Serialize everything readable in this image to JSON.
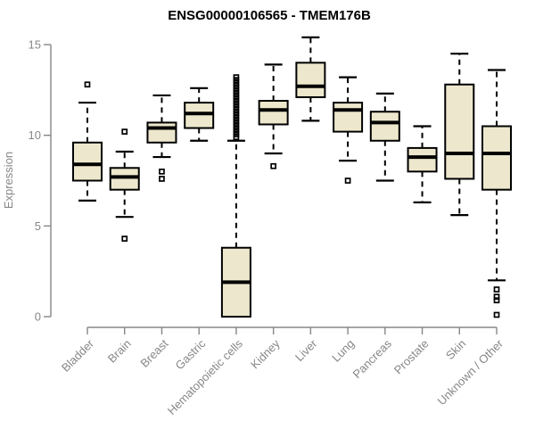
{
  "chart_data": {
    "type": "box",
    "title": "ENSG00000106565 - TMEM176B",
    "ylabel": "Expression",
    "xlabel": "",
    "ylim": [
      0,
      15
    ],
    "yticks": [
      0,
      5,
      10,
      15
    ],
    "grid": false,
    "legend": "none",
    "colors": {
      "box_fill": "#EDE8CD",
      "box_stroke": "#000000",
      "median": "#000000",
      "whisker": "#000000",
      "outlier": "#000000",
      "axis": "#878787",
      "tick_text": "#878787",
      "title_text": "#000000",
      "background": "#FFFFFF"
    },
    "categories": [
      "Bladder",
      "Brain",
      "Breast",
      "Gastric",
      "Hematopoietic cells",
      "Kidney",
      "Liver",
      "Lung",
      "Pancreas",
      "Prostate",
      "Skin",
      "Unknown / Other"
    ],
    "series": [
      {
        "category": "Bladder",
        "whisker_low": 6.4,
        "q1": 7.5,
        "median": 8.4,
        "q3": 9.6,
        "whisker_high": 11.8,
        "outliers": [
          12.8
        ]
      },
      {
        "category": "Brain",
        "whisker_low": 5.5,
        "q1": 7.0,
        "median": 7.7,
        "q3": 8.2,
        "whisker_high": 9.1,
        "outliers": [
          10.2,
          4.3
        ]
      },
      {
        "category": "Breast",
        "whisker_low": 8.8,
        "q1": 9.6,
        "median": 10.4,
        "q3": 10.7,
        "whisker_high": 12.2,
        "outliers": [
          8.0,
          7.6
        ]
      },
      {
        "category": "Gastric",
        "whisker_low": 9.7,
        "q1": 10.4,
        "median": 11.2,
        "q3": 11.8,
        "whisker_high": 12.6,
        "outliers": []
      },
      {
        "category": "Hematopoietic cells",
        "whisker_low": 0.0,
        "q1": 0.0,
        "median": 1.9,
        "q3": 3.8,
        "whisker_high": 9.7,
        "outliers": [
          9.9,
          10.05,
          10.2,
          10.35,
          10.5,
          10.65,
          10.8,
          10.95,
          11.1,
          11.25,
          11.4,
          11.55,
          11.7,
          11.85,
          12.0,
          12.15,
          12.3,
          12.45,
          12.6,
          12.75,
          12.9,
          13.05,
          13.2
        ]
      },
      {
        "category": "Kidney",
        "whisker_low": 9.0,
        "q1": 10.6,
        "median": 11.4,
        "q3": 11.9,
        "whisker_high": 13.9,
        "outliers": [
          8.3
        ]
      },
      {
        "category": "Liver",
        "whisker_low": 10.8,
        "q1": 12.1,
        "median": 12.7,
        "q3": 14.0,
        "whisker_high": 15.4,
        "outliers": []
      },
      {
        "category": "Lung",
        "whisker_low": 8.6,
        "q1": 10.2,
        "median": 11.4,
        "q3": 11.8,
        "whisker_high": 13.2,
        "outliers": [
          7.5
        ]
      },
      {
        "category": "Pancreas",
        "whisker_low": 7.5,
        "q1": 9.7,
        "median": 10.7,
        "q3": 11.3,
        "whisker_high": 12.3,
        "outliers": []
      },
      {
        "category": "Prostate",
        "whisker_low": 6.3,
        "q1": 8.0,
        "median": 8.8,
        "q3": 9.3,
        "whisker_high": 10.5,
        "outliers": []
      },
      {
        "category": "Skin",
        "whisker_low": 5.6,
        "q1": 7.6,
        "median": 9.0,
        "q3": 12.8,
        "whisker_high": 14.5,
        "outliers": []
      },
      {
        "category": "Unknown / Other",
        "whisker_low": 2.0,
        "q1": 7.0,
        "median": 9.0,
        "q3": 10.5,
        "whisker_high": 13.6,
        "outliers": [
          1.5,
          1.1,
          0.9,
          0.1
        ]
      }
    ]
  }
}
